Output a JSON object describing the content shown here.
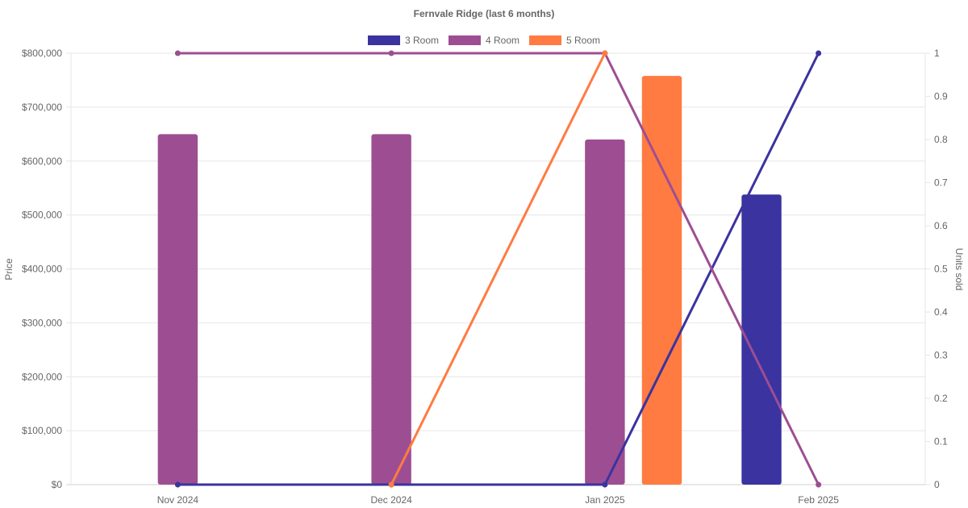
{
  "chart_data": {
    "type": "bar",
    "title": "Fernvale Ridge (last 6 months)",
    "categories": [
      "Nov 2024",
      "Dec 2024",
      "Jan 2025",
      "Feb 2025"
    ],
    "ylabel": "Price",
    "y2label": "Units sold",
    "ylim": [
      0,
      800000
    ],
    "y2lim": [
      0,
      1
    ],
    "y_ticks": [
      "$0",
      "$100,000",
      "$200,000",
      "$300,000",
      "$400,000",
      "$500,000",
      "$600,000",
      "$700,000",
      "$800,000"
    ],
    "y2_ticks": [
      "0",
      "0.1",
      "0.2",
      "0.3",
      "0.4",
      "0.5",
      "0.6",
      "0.7",
      "0.8",
      "0.9",
      "1"
    ],
    "grid": true,
    "legend_position": "top-center",
    "bar_series": [
      {
        "name": "3 Room",
        "color": "#3a33a0",
        "values": [
          null,
          null,
          null,
          538000
        ]
      },
      {
        "name": "4 Room",
        "color": "#9d4e92",
        "values": [
          650000,
          650000,
          640000,
          null
        ]
      },
      {
        "name": "5 Room",
        "color": "#ff7b42",
        "values": [
          null,
          null,
          758000,
          null
        ]
      }
    ],
    "line_series": [
      {
        "name": "3 Room",
        "color": "#3a33a0",
        "axis": "right",
        "values": [
          0,
          0,
          0,
          1
        ]
      },
      {
        "name": "4 Room",
        "color": "#9d4e92",
        "axis": "right",
        "values": [
          1,
          1,
          1,
          0
        ]
      },
      {
        "name": "5 Room",
        "color": "#ff7b42",
        "axis": "right",
        "values": [
          null,
          0,
          1,
          null
        ]
      }
    ],
    "legend": [
      {
        "name": "3 Room",
        "color": "#3a33a0"
      },
      {
        "name": "4 Room",
        "color": "#9d4e92"
      },
      {
        "name": "5 Room",
        "color": "#ff7b42"
      }
    ]
  }
}
